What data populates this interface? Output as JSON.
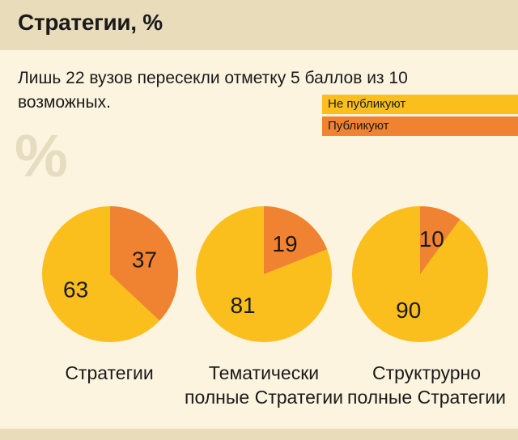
{
  "header": {
    "title": "Стратегии, %"
  },
  "subtitle": "Лишь 22 вузов пересекли отметку 5 баллов из 10 возможных.",
  "watermark": "%",
  "colors": {
    "not_publish": "#fbbf1d",
    "publish": "#ef8332",
    "background": "#fcf4df",
    "header_bg": "#e8dcbb"
  },
  "chart_data": {
    "type": "pie",
    "legend": [
      {
        "name": "Не публикуют",
        "color": "#fbbf1d"
      },
      {
        "name": "Публикуют",
        "color": "#ef8332"
      }
    ],
    "charts": [
      {
        "label_line1": "Стратегии",
        "label_line2": "",
        "not_publish": 63,
        "publish": 37
      },
      {
        "label_line1": "Тематически",
        "label_line2": "полные Стратегии",
        "not_publish": 81,
        "publish": 19
      },
      {
        "label_line1": "Структрурно",
        "label_line2": "полные Стратегии",
        "not_publish": 90,
        "publish": 10
      }
    ]
  }
}
